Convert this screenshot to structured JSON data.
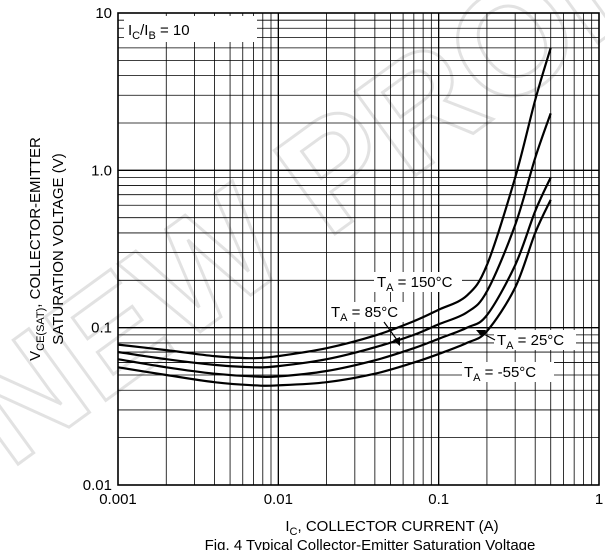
{
  "chart_data": {
    "type": "line",
    "xscale": "log",
    "yscale": "log",
    "xlim": [
      0.001,
      1
    ],
    "ylim": [
      0.01,
      10
    ],
    "grid": true,
    "xlabel_main": "I",
    "xlabel_sub": "C",
    "xlabel_rest": ", COLLECTOR CURRENT (A)",
    "ylabel_main": "V",
    "ylabel_sub": "CE(SAT)",
    "ylabel_rest": ", COLLECTOR-EMITTER",
    "ylabel_line2": "SATURATION VOLTAGE (V)",
    "caption": "Fig. 4 Typical Collector-Emitter Saturation Voltage",
    "x_ticks": [
      {
        "value": 0.001,
        "label": "0.001"
      },
      {
        "value": 0.01,
        "label": "0.01"
      },
      {
        "value": 0.1,
        "label": "0.1"
      },
      {
        "value": 1,
        "label": "1"
      }
    ],
    "y_ticks": [
      {
        "value": 0.01,
        "label": "0.01"
      },
      {
        "value": 0.1,
        "label": "0.1"
      },
      {
        "value": 1,
        "label": "1.0"
      },
      {
        "value": 10,
        "label": "10"
      }
    ],
    "condition": {
      "main": "I",
      "sub1": "C",
      "mid": "/I",
      "sub2": "B",
      "rest": " = 10"
    },
    "watermark": "NEW PRODUCT DESIGN",
    "series": [
      {
        "name": "T_A = 150°C",
        "label_main": "T",
        "label_sub": "A",
        "label_rest": " = 150°C",
        "x": [
          0.001,
          0.002,
          0.004,
          0.007,
          0.01,
          0.02,
          0.04,
          0.07,
          0.1,
          0.15,
          0.2,
          0.3,
          0.4,
          0.5
        ],
        "y": [
          0.078,
          0.072,
          0.066,
          0.064,
          0.066,
          0.074,
          0.089,
          0.11,
          0.13,
          0.16,
          0.25,
          0.9,
          2.8,
          6.0
        ]
      },
      {
        "name": "T_A = 85°C",
        "label_main": "T",
        "label_sub": "A",
        "label_rest": " = 85°C",
        "x": [
          0.001,
          0.002,
          0.004,
          0.007,
          0.01,
          0.02,
          0.04,
          0.07,
          0.1,
          0.15,
          0.2,
          0.3,
          0.4,
          0.5
        ],
        "y": [
          0.07,
          0.063,
          0.058,
          0.056,
          0.057,
          0.063,
          0.075,
          0.09,
          0.105,
          0.125,
          0.17,
          0.45,
          1.2,
          2.3
        ]
      },
      {
        "name": "T_A = 25°C",
        "label_main": "T",
        "label_sub": "A",
        "label_rest": " = 25°C",
        "x": [
          0.001,
          0.002,
          0.004,
          0.007,
          0.01,
          0.02,
          0.04,
          0.07,
          0.1,
          0.15,
          0.2,
          0.3,
          0.4,
          0.5
        ],
        "y": [
          0.063,
          0.056,
          0.051,
          0.049,
          0.049,
          0.053,
          0.062,
          0.074,
          0.085,
          0.1,
          0.12,
          0.25,
          0.55,
          0.9
        ]
      },
      {
        "name": "T_A = -55°C",
        "label_main": "T",
        "label_sub": "A",
        "label_rest": " = -55°C",
        "x": [
          0.001,
          0.002,
          0.004,
          0.007,
          0.01,
          0.02,
          0.04,
          0.07,
          0.1,
          0.15,
          0.2,
          0.3,
          0.4,
          0.5
        ],
        "y": [
          0.056,
          0.05,
          0.045,
          0.043,
          0.043,
          0.045,
          0.051,
          0.06,
          0.068,
          0.08,
          0.095,
          0.18,
          0.4,
          0.65
        ]
      }
    ]
  }
}
